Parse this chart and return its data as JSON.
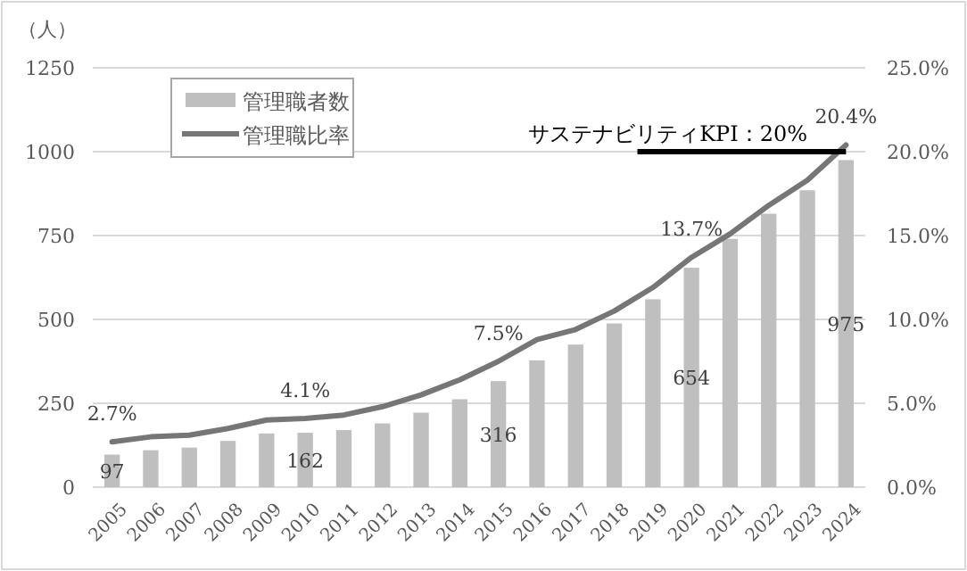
{
  "chart_data": {
    "type": "bar",
    "ylabel": "（人）",
    "categories": [
      "2005",
      "2006",
      "2007",
      "2008",
      "2009",
      "2010",
      "2011",
      "2012",
      "2013",
      "2014",
      "2015",
      "2016",
      "2017",
      "2018",
      "2019",
      "2020",
      "2021",
      "2022",
      "2023",
      "2024"
    ],
    "series": [
      {
        "name": "管理職者数",
        "color": "#bfbfbf",
        "values": [
          97,
          110,
          118,
          138,
          160,
          162,
          170,
          190,
          222,
          262,
          316,
          378,
          425,
          488,
          560,
          654,
          740,
          815,
          885,
          975
        ],
        "value_labels": [
          "97",
          null,
          null,
          null,
          null,
          "162",
          null,
          null,
          null,
          null,
          "316",
          null,
          null,
          null,
          null,
          "654",
          null,
          null,
          null,
          "975"
        ]
      },
      {
        "name": "管理職比率",
        "type": "line",
        "axis": "y2",
        "color": "#767676",
        "values": [
          2.7,
          3.0,
          3.1,
          3.5,
          4.0,
          4.1,
          4.3,
          4.8,
          5.5,
          6.4,
          7.5,
          8.8,
          9.4,
          10.5,
          11.9,
          13.7,
          15.1,
          16.8,
          18.3,
          20.4
        ],
        "value_labels": [
          "2.7%",
          null,
          null,
          null,
          null,
          "4.1%",
          null,
          null,
          null,
          null,
          "7.5%",
          null,
          null,
          null,
          null,
          "13.7%",
          null,
          null,
          null,
          "20.4%"
        ]
      }
    ],
    "ylim": [
      0,
      1250
    ],
    "yticks": [
      0,
      250,
      500,
      750,
      1000,
      1250
    ],
    "y2lim": [
      0,
      25
    ],
    "y2ticks": [
      {
        "value": 0,
        "label": "0.0%"
      },
      {
        "value": 5,
        "label": "5.0%"
      },
      {
        "value": 10,
        "label": "10.0%"
      },
      {
        "value": 15,
        "label": "15.0%"
      },
      {
        "value": 20,
        "label": "20.0%"
      },
      {
        "value": 25,
        "label": "25.0%"
      }
    ],
    "ref_lines": [
      {
        "axis": "y2",
        "value": 20,
        "label": "サステナビリティKPI：20%",
        "color": "#000000"
      }
    ],
    "grid": "y",
    "legend": "top left",
    "marker": "none",
    "line_style": "solid"
  }
}
